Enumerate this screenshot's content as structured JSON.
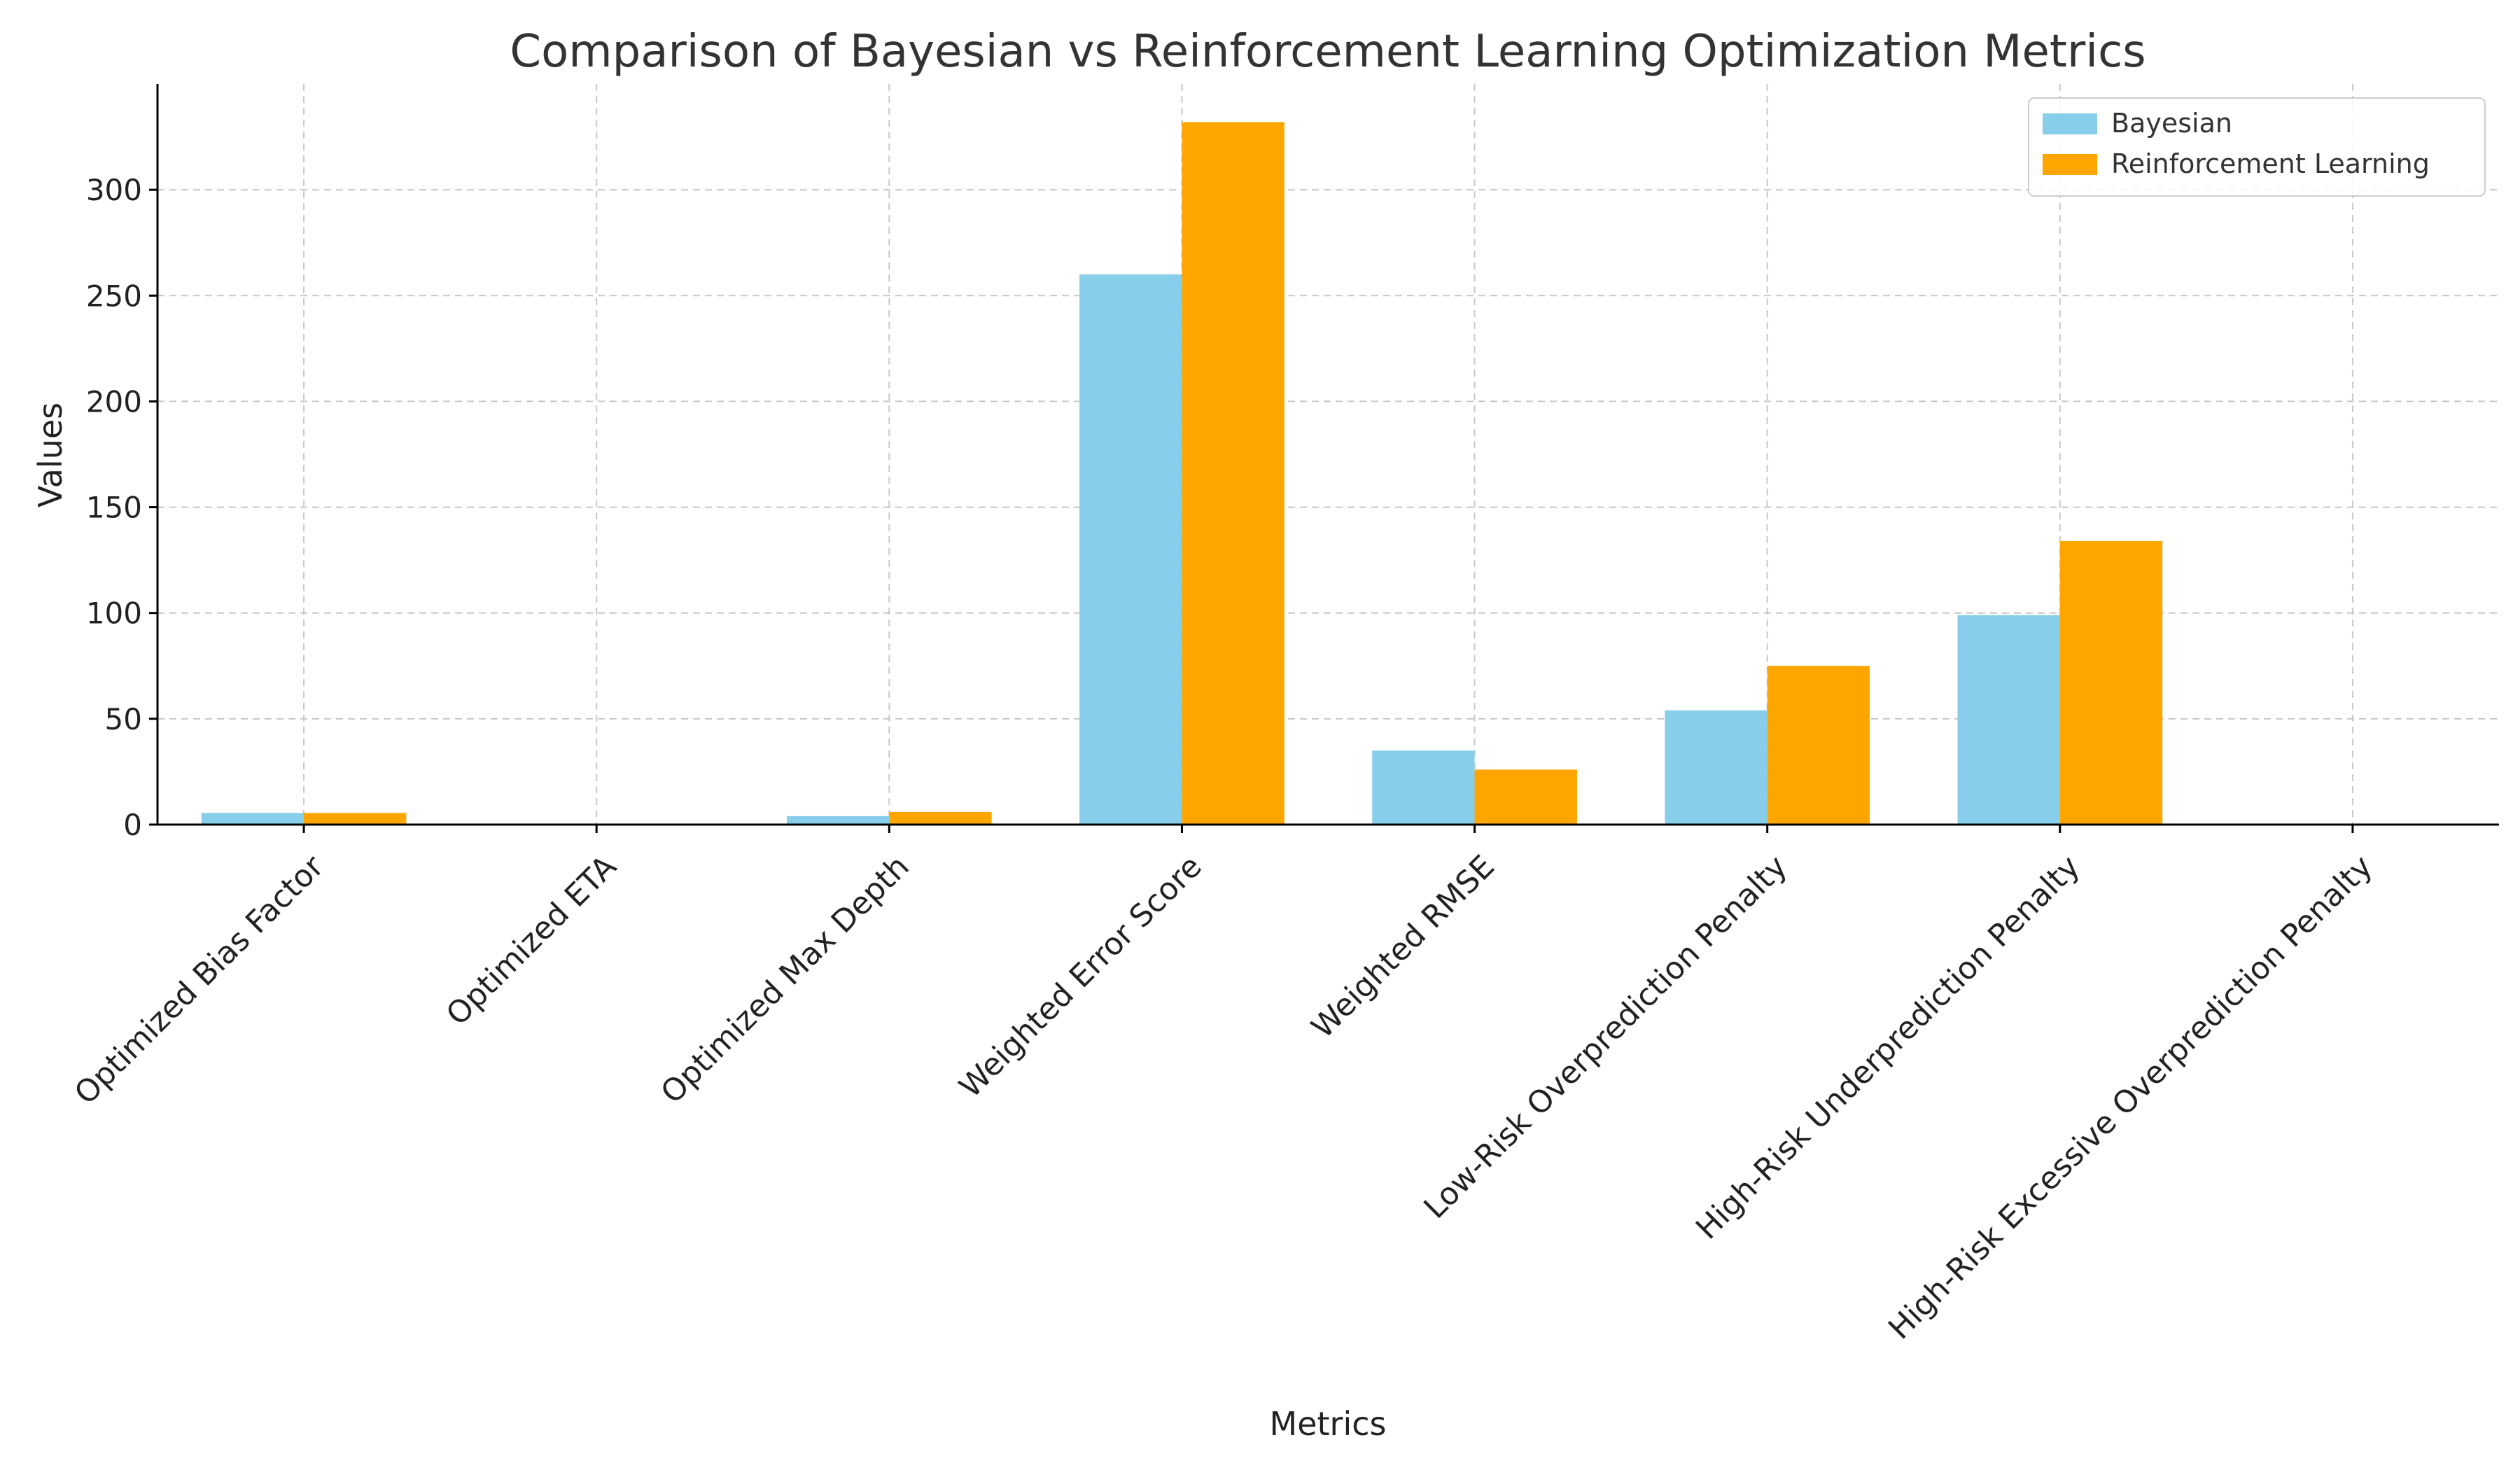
{
  "chart_data": {
    "type": "bar",
    "title": "Comparison of Bayesian vs Reinforcement Learning Optimization Metrics",
    "xlabel": "Metrics",
    "ylabel": "Values",
    "ylim": [
      0,
      350
    ],
    "yticks": [
      0,
      50,
      100,
      150,
      200,
      250,
      300
    ],
    "grid": true,
    "legend_position": "top-right",
    "categories": [
      "Optimized Bias Factor",
      "Optimized ETA",
      "Optimized Max Depth",
      "Weighted Error Score",
      "Weighted RMSE",
      "Low-Risk Overprediction Penalty",
      "High-Risk Underprediction Penalty",
      "High-Risk Excessive Overprediction Penalty"
    ],
    "series": [
      {
        "name": "Bayesian",
        "color": "#87CEEB",
        "values": [
          5.5,
          0.1,
          4,
          260,
          35,
          54,
          99,
          0
        ]
      },
      {
        "name": "Reinforcement Learning",
        "color": "#FFA500",
        "values": [
          5.5,
          0.05,
          6,
          332,
          26,
          75,
          134,
          0
        ]
      }
    ]
  }
}
